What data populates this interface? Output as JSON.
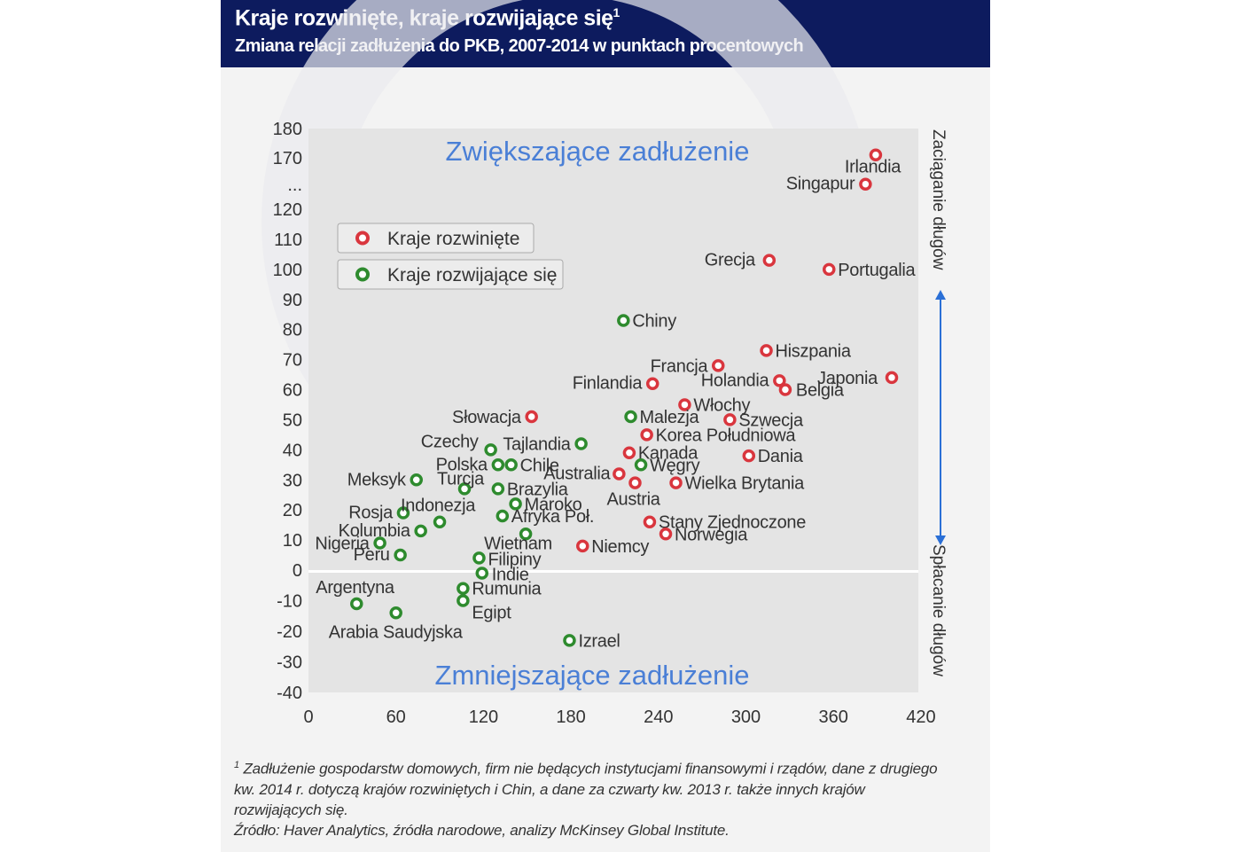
{
  "header": {
    "title": "Kraje rozwinięte, kraje rozwijające się",
    "title_footnote_mark": "1",
    "subtitle": "Zmiana relacji zadłużenia do PKB, 2007-2014 w punktach procentowych"
  },
  "footnote": {
    "mark": "1",
    "text": "Zadłużenie gospodarstw domowych, firm nie będących instytucjami finansowymi i rządów, dane z drugiego kw. 2014 r. dotyczą krajów rozwiniętych i Chin, a dane za czwarty kw. 2013 r. także innych krajów rozwijających się.",
    "source": "Źródło: Haver Analytics, źródła narodowe, analizy McKinsey Global Institute."
  },
  "colors": {
    "header_bg": "#0d1b5e",
    "developed": "#d9363e",
    "developing": "#2e8b2e",
    "region_label": "#4a7fd6",
    "axis_arrow": "#2a6fd6",
    "plot_bg": "#e4e4e4"
  },
  "chart_data": {
    "type": "scatter",
    "title": "Kraje rozwinięte, kraje rozwijające się",
    "subtitle": "Zmiana relacji zadłużenia do PKB, 2007-2014 w punktach procentowych",
    "xlim": [
      0,
      420
    ],
    "ylim": [
      -40,
      180
    ],
    "x_ticks": [
      "0",
      "60",
      "120",
      "180",
      "240",
      "300",
      "360",
      "420"
    ],
    "y_ticks": [
      "180",
      "170",
      "...",
      "120",
      "110",
      "100",
      "90",
      "80",
      "70",
      "60",
      "50",
      "40",
      "30",
      "20",
      "10",
      "0",
      "-10",
      "-20",
      "-30",
      "-40"
    ],
    "y_axis_break": [
      120,
      170
    ],
    "right_axis_label_top": "Zaciąganie długów",
    "right_axis_label_bottom": "Spłacanie długów",
    "region_top_label": "Zwiększające zadłużenie",
    "region_bottom_label": "Zmniejszające zadłużenie",
    "legend_placement": "top-left",
    "grid": false,
    "series": [
      {
        "name": "Kraje rozwinięte",
        "color": "#d9363e",
        "points": [
          {
            "label": "Irlandia",
            "x": 389,
            "y": 171
          },
          {
            "label": "Singapur",
            "x": 382,
            "y": 161
          },
          {
            "label": "Grecja",
            "x": 316,
            "y": 103
          },
          {
            "label": "Portugalia",
            "x": 357,
            "y": 100
          },
          {
            "label": "Hiszpania",
            "x": 314,
            "y": 73
          },
          {
            "label": "Francja",
            "x": 281,
            "y": 68
          },
          {
            "label": "Japonia",
            "x": 400,
            "y": 64
          },
          {
            "label": "Holandia",
            "x": 323,
            "y": 63
          },
          {
            "label": "Belgia",
            "x": 327,
            "y": 60
          },
          {
            "label": "Finlandia",
            "x": 236,
            "y": 62
          },
          {
            "label": "Włochy",
            "x": 258,
            "y": 55
          },
          {
            "label": "Słowacja",
            "x": 153,
            "y": 51
          },
          {
            "label": "Szwecja",
            "x": 289,
            "y": 50
          },
          {
            "label": "Korea Południowa",
            "x": 232,
            "y": 45
          },
          {
            "label": "Kanada",
            "x": 220,
            "y": 39
          },
          {
            "label": "Dania",
            "x": 302,
            "y": 38
          },
          {
            "label": "Australia",
            "x": 213,
            "y": 32
          },
          {
            "label": "Austria",
            "x": 224,
            "y": 29
          },
          {
            "label": "Wielka Brytania",
            "x": 252,
            "y": 29
          },
          {
            "label": "Stany Zjednoczone",
            "x": 234,
            "y": 16
          },
          {
            "label": "Norwegia",
            "x": 245,
            "y": 12
          },
          {
            "label": "Niemcy",
            "x": 188,
            "y": 8
          }
        ]
      },
      {
        "name": "Kraje rozwijające się",
        "color": "#2e8b2e",
        "points": [
          {
            "label": "Chiny",
            "x": 216,
            "y": 83
          },
          {
            "label": "Malezja",
            "x": 221,
            "y": 51
          },
          {
            "label": "Tajlandia",
            "x": 187,
            "y": 42
          },
          {
            "label": "Czechy",
            "x": 125,
            "y": 40
          },
          {
            "label": "Polska",
            "x": 130,
            "y": 35
          },
          {
            "label": "Chile",
            "x": 139,
            "y": 35
          },
          {
            "label": "Węgry",
            "x": 228,
            "y": 35
          },
          {
            "label": "Meksyk",
            "x": 74,
            "y": 30
          },
          {
            "label": "Turcja",
            "x": 107,
            "y": 27
          },
          {
            "label": "Brazylia",
            "x": 130,
            "y": 27
          },
          {
            "label": "Maroko",
            "x": 142,
            "y": 22
          },
          {
            "label": "Rosja",
            "x": 65,
            "y": 19
          },
          {
            "label": "Indonezja",
            "x": 90,
            "y": 16
          },
          {
            "label": "Afryka Poł.",
            "x": 133,
            "y": 18
          },
          {
            "label": "Kolumbia",
            "x": 77,
            "y": 13
          },
          {
            "label": "Wietnam",
            "x": 149,
            "y": 12
          },
          {
            "label": "Nigeria",
            "x": 49,
            "y": 9
          },
          {
            "label": "Peru",
            "x": 63,
            "y": 5
          },
          {
            "label": "Filipiny",
            "x": 117,
            "y": 4
          },
          {
            "label": "Indie",
            "x": 119,
            "y": -1
          },
          {
            "label": "Rumunia",
            "x": 106,
            "y": -6
          },
          {
            "label": "Egipt",
            "x": 106,
            "y": -10
          },
          {
            "label": "Argentyna",
            "x": 33,
            "y": -11
          },
          {
            "label": "Arabia Saudyjska",
            "x": 60,
            "y": -14
          },
          {
            "label": "Izrael",
            "x": 179,
            "y": -23
          }
        ]
      }
    ]
  }
}
